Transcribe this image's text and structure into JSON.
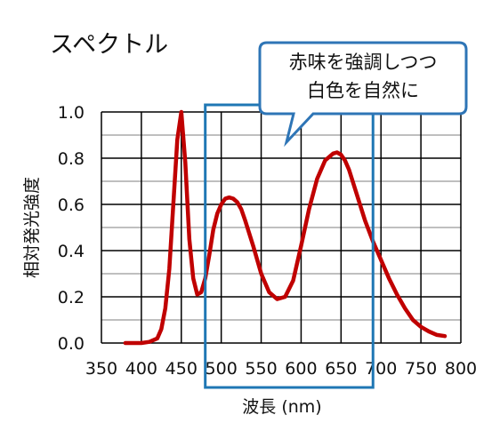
{
  "title": "スペクトル",
  "callout": {
    "line1": "赤味を強調しつつ",
    "line2": "白色を自然に"
  },
  "colors": {
    "curve": "#c00000",
    "highlight": "#1f77b4",
    "callout_border": "#2e75b6",
    "grid": "#000000"
  },
  "chart_data": {
    "type": "line",
    "xlabel": "波長 (nm)",
    "ylabel": "相対発光強度",
    "xlim": [
      350,
      800
    ],
    "ylim": [
      0.0,
      1.0
    ],
    "x_ticks": [
      350,
      400,
      450,
      500,
      550,
      600,
      650,
      700,
      750,
      800
    ],
    "y_ticks": [
      0.0,
      0.2,
      0.4,
      0.6,
      0.8,
      1.0
    ],
    "x_tick_labels": [
      "350",
      "400",
      "450",
      "500",
      "550",
      "600",
      "650",
      "700",
      "750",
      "800"
    ],
    "y_tick_labels": [
      "0.0",
      "0.2",
      "0.4",
      "0.6",
      "0.8",
      "1.0"
    ],
    "grid": true,
    "highlight_range": [
      480,
      690
    ],
    "series": [
      {
        "x": [
          380,
          400,
          410,
          420,
          425,
          430,
          435,
          440,
          445,
          450,
          455,
          460,
          465,
          470,
          475,
          480,
          485,
          490,
          495,
          500,
          505,
          510,
          515,
          520,
          525,
          530,
          540,
          550,
          560,
          570,
          580,
          590,
          600,
          610,
          620,
          630,
          640,
          645,
          650,
          655,
          660,
          670,
          680,
          690,
          700,
          710,
          720,
          730,
          740,
          750,
          760,
          770,
          780
        ],
        "values": [
          0.0,
          0.0,
          0.005,
          0.02,
          0.06,
          0.15,
          0.32,
          0.6,
          0.88,
          1.0,
          0.78,
          0.45,
          0.28,
          0.21,
          0.22,
          0.28,
          0.38,
          0.49,
          0.56,
          0.6,
          0.625,
          0.63,
          0.625,
          0.61,
          0.58,
          0.53,
          0.42,
          0.3,
          0.22,
          0.19,
          0.2,
          0.27,
          0.42,
          0.58,
          0.71,
          0.79,
          0.82,
          0.825,
          0.815,
          0.79,
          0.75,
          0.64,
          0.53,
          0.44,
          0.36,
          0.28,
          0.21,
          0.15,
          0.1,
          0.07,
          0.05,
          0.035,
          0.03
        ]
      }
    ]
  }
}
